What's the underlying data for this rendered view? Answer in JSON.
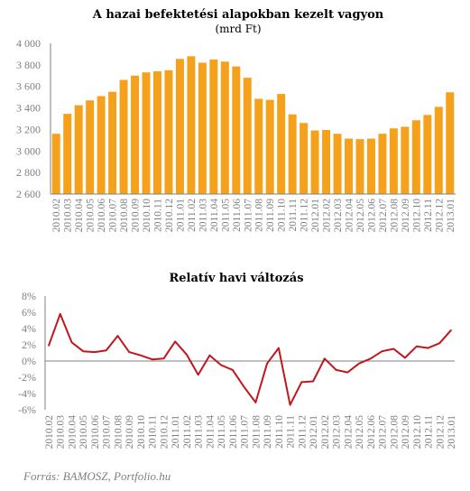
{
  "source": "Forrás: BAMOSZ, Portfolio.hu",
  "colors": {
    "bar": "#f5a11b",
    "line": "#c0171d",
    "axis": "#808080",
    "grid": "#d9d9d9",
    "text": "#7f7f7f"
  },
  "chart_data": [
    {
      "type": "bar",
      "title": "A hazai befektetési  alapokban kezelt vagyon",
      "subtitle": "(mrd Ft)",
      "ylim": [
        2600,
        4000
      ],
      "yticks": [
        2600,
        2800,
        3000,
        3200,
        3400,
        3600,
        3800,
        4000
      ],
      "ytick_labels": [
        "2 600",
        "2 800",
        "3 000",
        "3 200",
        "3 400",
        "3 600",
        "3 800",
        "4 000"
      ],
      "categories": [
        "2010.02",
        "2010.03",
        "2010.04",
        "2010.05",
        "2010.06",
        "2010.07",
        "2010.08",
        "2010.09",
        "2010.10",
        "2010.11",
        "2010.12",
        "2011.01",
        "2011.02",
        "2011.03",
        "2011.04",
        "2011.05",
        "2011.06",
        "2011.07",
        "2011.08",
        "2011.09",
        "2011.10",
        "2011.11",
        "2011.12",
        "2012.01",
        "2012.02",
        "2012.03",
        "2012.04",
        "2012.05",
        "2012.06",
        "2012.07",
        "2012.08",
        "2012.09",
        "2012.10",
        "2012.11",
        "2012.12",
        "2013.01"
      ],
      "tick_labels": [
        "2010.02",
        "2010.03",
        "2010.04",
        "2010.05",
        "2010.06",
        "2010.07",
        "2010.08",
        "2010.09",
        "2010.10",
        "2010.11",
        "2010.12",
        "2011.01",
        "2011.02",
        "2011.03",
        "2011.04",
        "2011.05",
        "2011.06",
        "2011.07",
        "2011.08",
        "2011.09",
        "2011.10",
        "2011.11",
        "2011.12",
        "2012.01",
        "2012.02",
        "2012.03",
        "2012.04",
        "2012.05",
        "2012.06",
        "2012.07",
        "2012.08",
        "2012.09",
        "2012.10",
        "2012.11",
        "2012.12",
        "2013.01"
      ],
      "values": [
        3160,
        3345,
        3425,
        3470,
        3510,
        3550,
        3660,
        3700,
        3730,
        3740,
        3750,
        3855,
        3880,
        3820,
        3850,
        3830,
        3785,
        3680,
        3485,
        3475,
        3530,
        3340,
        3260,
        3190,
        3195,
        3160,
        3115,
        3110,
        3115,
        3160,
        3210,
        3225,
        3285,
        3335,
        3410,
        3545
      ]
    },
    {
      "type": "line",
      "title": "Relatív havi változás",
      "ylim": [
        -6,
        8
      ],
      "yticks": [
        -6,
        -4,
        -2,
        0,
        2,
        4,
        6,
        8
      ],
      "ytick_labels": [
        "-6%",
        "-4%",
        "-2%",
        "0%",
        "2%",
        "4%",
        "6%",
        "8%"
      ],
      "categories": [
        "2010.02",
        "2010.03",
        "2010.04",
        "2010.05",
        "2010.06",
        "2010.07",
        "2010.08",
        "2010.09",
        "2010.10",
        "2010.11",
        "2010.12",
        "2011.01",
        "2011.02",
        "2011.03",
        "2011.04",
        "2011.05",
        "2011.06",
        "2011.07",
        "2011.08",
        "2011.09",
        "2011.10",
        "2011.11",
        "2011.12",
        "2012.01",
        "2012.02",
        "2012.03",
        "2012.04",
        "2012.05",
        "2012.06",
        "2012.07",
        "2012.08",
        "2012.09",
        "2012.10",
        "2012.11",
        "2012.12",
        "2013.01"
      ],
      "tick_labels": [
        "2010.02",
        "2010.03",
        "2010.04",
        "2010.05",
        "2010.06",
        "2010.07",
        "2010.08",
        "2010.09",
        "2010.10",
        "2010.11",
        "2010.12",
        "2011.01",
        "2011.02",
        "2011.03",
        "2011.04",
        "2011.05",
        "2011.06",
        "2011.07",
        "2011.08",
        "2011.09",
        "2011.10",
        "2011.11",
        "2011.12",
        "2012.01",
        "2012.02",
        "2012.03",
        "2012.04",
        "2012.05",
        "2012.06",
        "2012.07",
        "2012.08",
        "2012.09",
        "2012.10",
        "2012.11",
        "2012.12",
        "2013.01"
      ],
      "values": [
        1.9,
        5.8,
        2.3,
        1.2,
        1.1,
        1.3,
        3.1,
        1.1,
        0.7,
        0.2,
        0.3,
        2.4,
        0.8,
        -1.7,
        0.7,
        -0.5,
        -1.1,
        -3.2,
        -5.1,
        -0.3,
        1.6,
        -5.4,
        -2.6,
        -2.5,
        0.3,
        -1.1,
        -1.4,
        -0.3,
        0.3,
        1.2,
        1.5,
        0.4,
        1.8,
        1.6,
        2.2,
        3.8
      ]
    }
  ]
}
